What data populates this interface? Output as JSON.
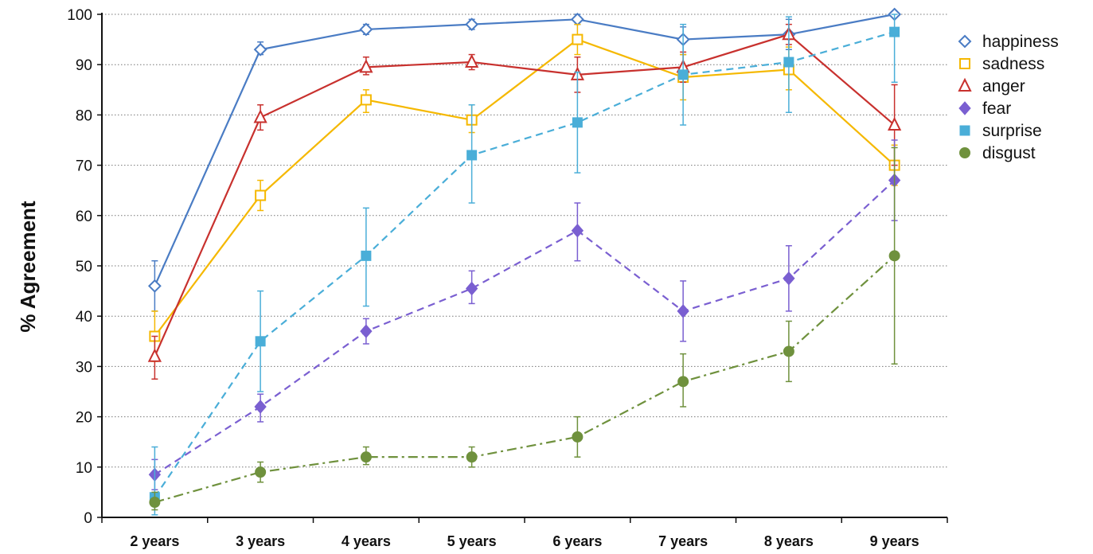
{
  "chart_data": {
    "type": "line",
    "xlabel": "",
    "ylabel": "% Agreement",
    "ylim": [
      0,
      100
    ],
    "yticks": [
      "0",
      "10",
      "20",
      "30",
      "40",
      "50",
      "60",
      "70",
      "80",
      "90",
      "100"
    ],
    "categories": [
      "2 years",
      "3 years",
      "4 years",
      "5 years",
      "6 years",
      "7 years",
      "8 years",
      "9 years"
    ],
    "grid": "horizontal dotted",
    "legend_position": "right",
    "series": [
      {
        "name": "happiness",
        "color": "#4a7cc4",
        "marker": "diamond-open",
        "line": "solid",
        "values": [
          46,
          93,
          97,
          98,
          99,
          95,
          96,
          100
        ],
        "err_low": [
          41,
          92,
          96,
          97,
          98,
          92,
          93,
          100
        ],
        "err_high": [
          51,
          94.5,
          98,
          99,
          100,
          97.5,
          99,
          100
        ]
      },
      {
        "name": "sadness",
        "color": "#f5b800",
        "marker": "square-open",
        "line": "solid",
        "values": [
          36,
          64,
          83,
          79,
          95,
          87.5,
          89,
          70
        ],
        "err_low": [
          31,
          61,
          80.5,
          76.5,
          92,
          83,
          85,
          66
        ],
        "err_high": [
          41,
          67,
          85,
          82,
          98,
          92,
          93.5,
          74
        ]
      },
      {
        "name": "anger",
        "color": "#c8312e",
        "marker": "triangle-open",
        "line": "solid",
        "values": [
          32,
          79.5,
          89.5,
          90.5,
          88,
          89.5,
          96,
          78
        ],
        "err_low": [
          27.5,
          77,
          88,
          89,
          84.5,
          86.5,
          94,
          70
        ],
        "err_high": [
          36,
          82,
          91.5,
          92,
          91.5,
          92.5,
          98,
          86
        ]
      },
      {
        "name": "fear",
        "color": "#7a5fd1",
        "marker": "diamond-filled",
        "line": "dashed",
        "values": [
          8.5,
          22,
          37,
          45.5,
          57,
          41,
          47.5,
          67
        ],
        "err_low": [
          5.5,
          19,
          34.5,
          42.5,
          51,
          35,
          41,
          59
        ],
        "err_high": [
          11.5,
          24.5,
          39.5,
          49,
          62.5,
          47,
          54,
          75
        ]
      },
      {
        "name": "surprise",
        "color": "#4aaed8",
        "marker": "square-filled",
        "line": "dashed",
        "values": [
          4,
          35,
          52,
          72,
          78.5,
          88,
          90.5,
          96.5
        ],
        "err_low": [
          0.5,
          25,
          42,
          62.5,
          68.5,
          78,
          80.5,
          86.5
        ],
        "err_high": [
          14,
          45,
          61.5,
          82,
          88.5,
          98,
          99.5,
          100
        ]
      },
      {
        "name": "disgust",
        "color": "#6f913d",
        "marker": "circle-filled",
        "line": "dashdot",
        "values": [
          3,
          9,
          12,
          12,
          16,
          27,
          33,
          52
        ],
        "err_low": [
          1.5,
          7,
          10.5,
          10,
          12,
          22,
          27,
          30.5
        ],
        "err_high": [
          5,
          11,
          14,
          14,
          20,
          32.5,
          39,
          73.5
        ]
      }
    ]
  }
}
